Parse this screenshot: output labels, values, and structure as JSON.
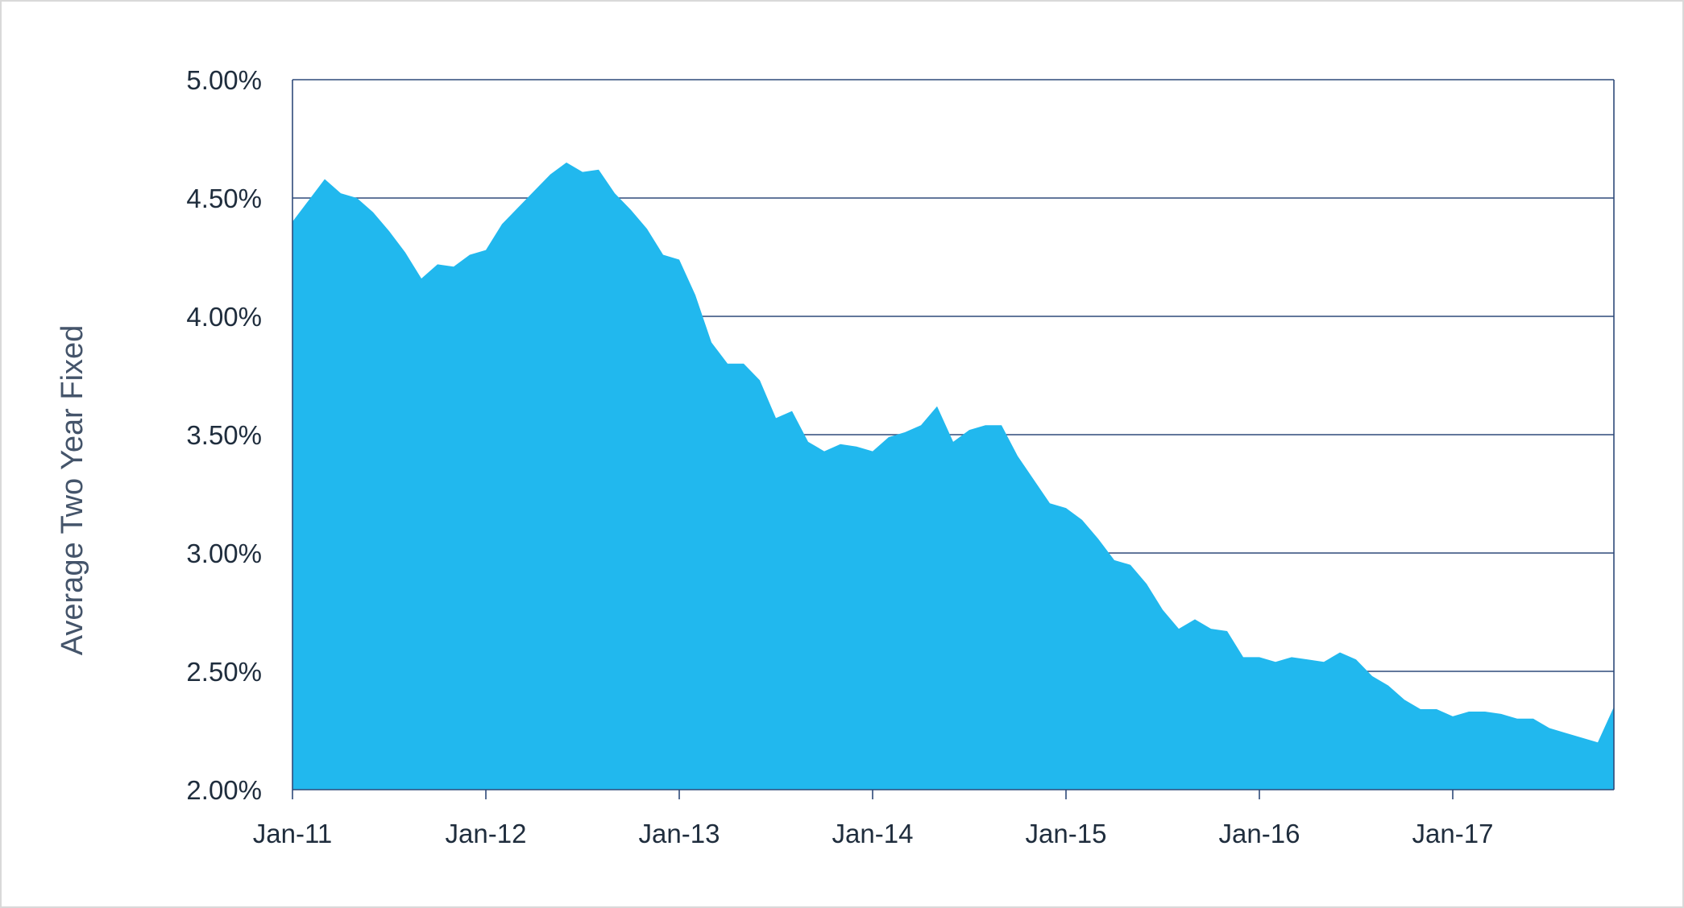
{
  "chart_data": {
    "type": "area",
    "ylabel": "Average Two Year Fixed",
    "xlabel": "",
    "title": "",
    "ylim": [
      2.0,
      5.0
    ],
    "y_ticks": [
      "2.00%",
      "2.50%",
      "3.00%",
      "3.50%",
      "4.00%",
      "4.50%",
      "5.00%"
    ],
    "x_ticks": [
      "Jan-11",
      "Jan-12",
      "Jan-13",
      "Jan-14",
      "Jan-15",
      "Jan-16",
      "Jan-17"
    ],
    "x_start": "Jan-11",
    "x_end": "Nov-17",
    "grid": "horizontal",
    "fill_color": "#21b8ee",
    "axis_color": "#2e4a7a",
    "series": [
      {
        "values": [
          4.4,
          4.49,
          4.58,
          4.52,
          4.5,
          4.44,
          4.36,
          4.27,
          4.16,
          4.22,
          4.21,
          4.26,
          4.28,
          4.39,
          4.46,
          4.53,
          4.6,
          4.65,
          4.61,
          4.62,
          4.52,
          4.45,
          4.37,
          4.26,
          4.24,
          4.09,
          3.89,
          3.8,
          3.8,
          3.73,
          3.57,
          3.6,
          3.47,
          3.43,
          3.46,
          3.45,
          3.43,
          3.49,
          3.51,
          3.54,
          3.62,
          3.47,
          3.52,
          3.54,
          3.54,
          3.41,
          3.31,
          3.21,
          3.19,
          3.14,
          3.06,
          2.97,
          2.95,
          2.87,
          2.76,
          2.68,
          2.72,
          2.68,
          2.67,
          2.56,
          2.56,
          2.54,
          2.56,
          2.55,
          2.54,
          2.58,
          2.55,
          2.48,
          2.44,
          2.38,
          2.34,
          2.34,
          2.31,
          2.33,
          2.33,
          2.32,
          2.3,
          2.3,
          2.26,
          2.24,
          2.22,
          2.2,
          2.35
        ]
      }
    ]
  }
}
